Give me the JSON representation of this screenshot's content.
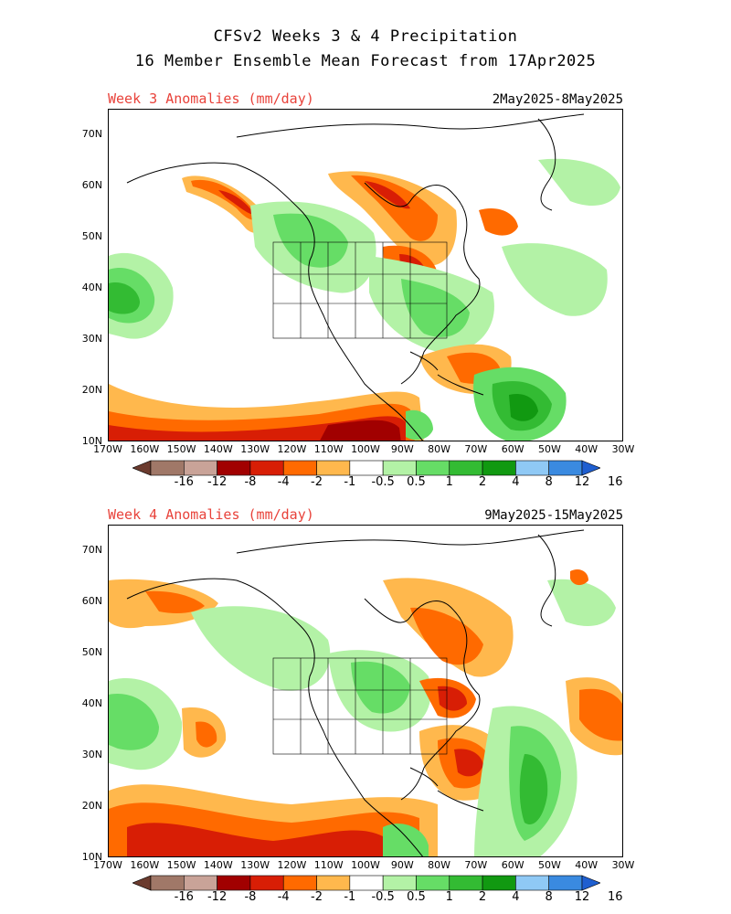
{
  "title": {
    "line1": "CFSv2 Weeks 3 & 4 Precipitation",
    "line2": "16 Member Ensemble Mean Forecast from 17Apr2025"
  },
  "panels": [
    {
      "label": "Week 3 Anomalies (mm/day)",
      "dates": "2May2025-8May2025"
    },
    {
      "label": "Week 4 Anomalies (mm/day)",
      "dates": "9May2025-15May2025"
    }
  ],
  "axes": {
    "lat_ticks": [
      "70N",
      "60N",
      "50N",
      "40N",
      "30N",
      "20N",
      "10N"
    ],
    "lon_ticks": [
      "170W",
      "160W",
      "150W",
      "140W",
      "130W",
      "120W",
      "110W",
      "100W",
      "90W",
      "80W",
      "70W",
      "60W",
      "50W",
      "40W",
      "30W"
    ]
  },
  "colorbar": {
    "labels": [
      "-16",
      "-12",
      "-8",
      "-4",
      "-2",
      "-1",
      "-0.5",
      "0.5",
      "1",
      "2",
      "4",
      "8",
      "12",
      "16"
    ],
    "colors": [
      "#6b3b2e",
      "#a07868",
      "#c9a398",
      "#a10000",
      "#d81e05",
      "#ff6a00",
      "#ffb84d",
      "#ffffff",
      "#b3f2a6",
      "#66dd66",
      "#33bb33",
      "#119911",
      "#8fc9f5",
      "#3a8ae0",
      "#1f5fd0"
    ]
  },
  "legend_colors": {
    "dry_light": "#ffb84d",
    "dry_mid": "#ff6a00",
    "dry_strong": "#d81e05",
    "dry_max": "#a10000",
    "wet_light": "#b3f2a6",
    "wet_mid": "#66dd66",
    "wet_strong": "#33bb33",
    "wet_max": "#119911"
  }
}
